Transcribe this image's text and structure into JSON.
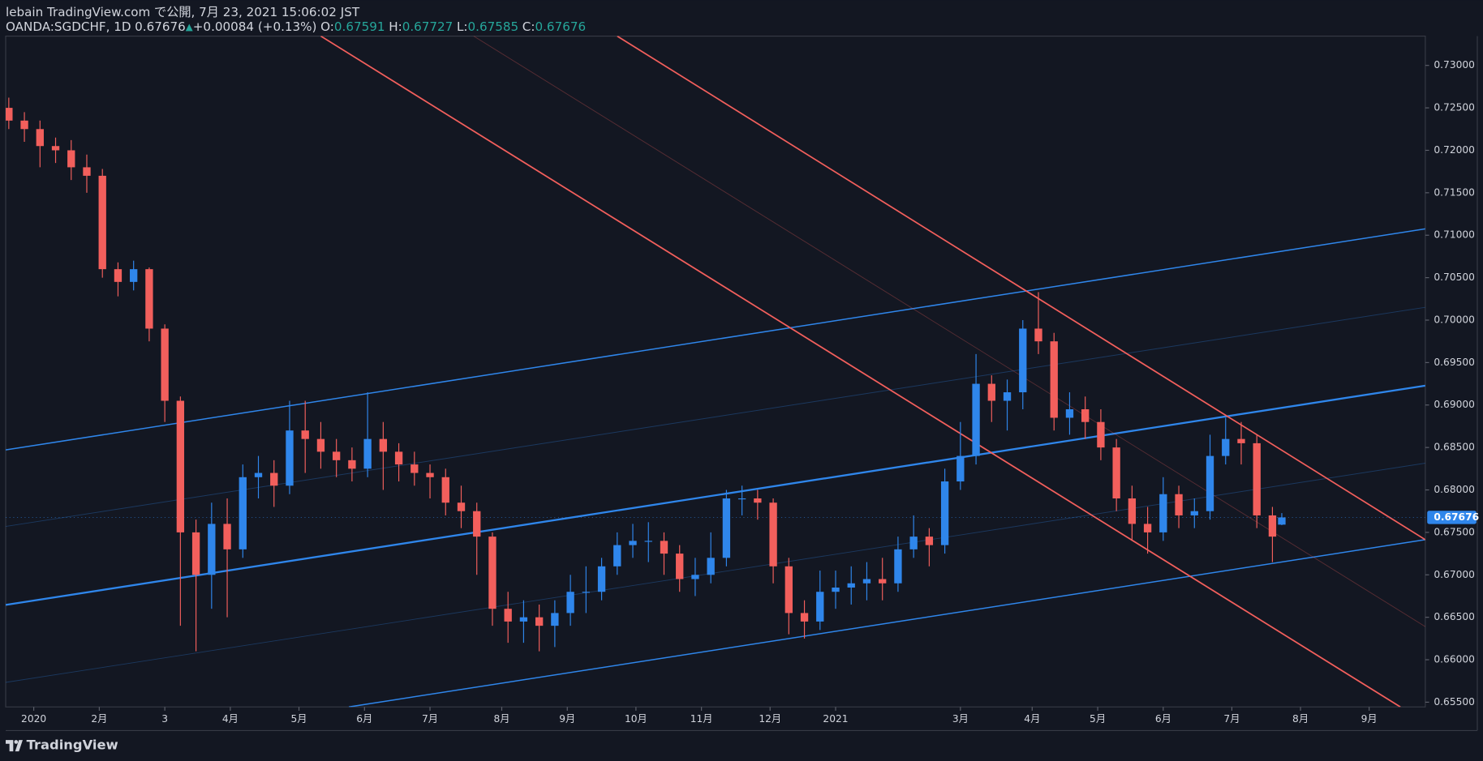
{
  "chart_data": {
    "type": "candlestick",
    "title": "lebain TradingView.com で公開, 7月 23, 2021 15:06:02 JST",
    "symbol": "OANDA:SGDCHF, 1D",
    "change": "+0.00084 (+0.13%)",
    "ohlc_labels": [
      "O:",
      "H:",
      "L:",
      "C:"
    ],
    "brand": "TradingView",
    "up_color": "#2f86eb",
    "down_color": "#f25f5c",
    "x": [
      0,
      5,
      10,
      15,
      20,
      25,
      30,
      35,
      40,
      45,
      50,
      55,
      60,
      65,
      70,
      75,
      80,
      85,
      90,
      95,
      100,
      105,
      110,
      115,
      120,
      125,
      130,
      135,
      140,
      145,
      150,
      155,
      160,
      165,
      170,
      175,
      180,
      185,
      190,
      195,
      200,
      205,
      210,
      215,
      220,
      225,
      230,
      235,
      240,
      245,
      250,
      255,
      260,
      265,
      270,
      275,
      280,
      285,
      290,
      295,
      300,
      305,
      310,
      315,
      320,
      325,
      330,
      335,
      340,
      345,
      350,
      355,
      360,
      365,
      370,
      375,
      380,
      385,
      390,
      395,
      400,
      405,
      408
    ],
    "open": [
      0.725,
      0.7235,
      0.7225,
      0.7205,
      0.72,
      0.718,
      0.717,
      0.706,
      0.7045,
      0.706,
      0.699,
      0.6905,
      0.675,
      0.67,
      0.676,
      0.673,
      0.6815,
      0.682,
      0.6805,
      0.687,
      0.686,
      0.6845,
      0.6835,
      0.6825,
      0.686,
      0.6845,
      0.683,
      0.682,
      0.6815,
      0.6785,
      0.6775,
      0.6745,
      0.666,
      0.6645,
      0.665,
      0.664,
      0.6655,
      0.668,
      0.668,
      0.671,
      0.6735,
      0.674,
      0.674,
      0.6725,
      0.6695,
      0.67,
      0.672,
      0.679,
      0.679,
      0.6785,
      0.671,
      0.6655,
      0.6645,
      0.668,
      0.6685,
      0.669,
      0.6695,
      0.669,
      0.673,
      0.6745,
      0.6735,
      0.681,
      0.684,
      0.6925,
      0.6905,
      0.6915,
      0.699,
      0.6975,
      0.6885,
      0.6895,
      0.688,
      0.685,
      0.679,
      0.676,
      0.675,
      0.6795,
      0.677,
      0.6775,
      0.684,
      0.686,
      0.6855,
      0.677,
      0.67591
    ],
    "high": [
      0.7262,
      0.7245,
      0.7235,
      0.7215,
      0.7212,
      0.7195,
      0.7178,
      0.7068,
      0.707,
      0.7062,
      0.6995,
      0.691,
      0.6765,
      0.6785,
      0.679,
      0.683,
      0.684,
      0.6835,
      0.6905,
      0.6905,
      0.688,
      0.686,
      0.685,
      0.6915,
      0.688,
      0.6855,
      0.6845,
      0.683,
      0.6825,
      0.6805,
      0.6785,
      0.675,
      0.668,
      0.667,
      0.6665,
      0.667,
      0.67,
      0.671,
      0.672,
      0.675,
      0.676,
      0.6762,
      0.675,
      0.6735,
      0.672,
      0.675,
      0.68,
      0.6805,
      0.68,
      0.679,
      0.672,
      0.667,
      0.6705,
      0.6705,
      0.671,
      0.6715,
      0.672,
      0.6745,
      0.677,
      0.6755,
      0.6825,
      0.688,
      0.696,
      0.6935,
      0.693,
      0.7,
      0.7033,
      0.6985,
      0.6915,
      0.691,
      0.6895,
      0.686,
      0.6805,
      0.678,
      0.6815,
      0.6805,
      0.679,
      0.6865,
      0.6885,
      0.688,
      0.6865,
      0.678,
      0.67727
    ],
    "low": [
      0.7225,
      0.721,
      0.718,
      0.7185,
      0.7165,
      0.715,
      0.705,
      0.7028,
      0.7035,
      0.6975,
      0.688,
      0.664,
      0.661,
      0.666,
      0.665,
      0.672,
      0.679,
      0.678,
      0.6795,
      0.682,
      0.6825,
      0.6815,
      0.681,
      0.6815,
      0.68,
      0.681,
      0.6805,
      0.679,
      0.677,
      0.6755,
      0.67,
      0.664,
      0.662,
      0.662,
      0.661,
      0.6615,
      0.664,
      0.6655,
      0.667,
      0.67,
      0.672,
      0.6715,
      0.67,
      0.668,
      0.6675,
      0.669,
      0.671,
      0.677,
      0.6765,
      0.669,
      0.663,
      0.6625,
      0.6635,
      0.666,
      0.6665,
      0.667,
      0.667,
      0.668,
      0.672,
      0.671,
      0.6725,
      0.68,
      0.683,
      0.688,
      0.687,
      0.6895,
      0.696,
      0.687,
      0.6865,
      0.686,
      0.6835,
      0.6775,
      0.674,
      0.6725,
      0.674,
      0.6755,
      0.6755,
      0.6765,
      0.683,
      0.683,
      0.6755,
      0.6715,
      0.67585
    ],
    "close": [
      0.7235,
      0.7225,
      0.7205,
      0.72,
      0.718,
      0.717,
      0.706,
      0.7045,
      0.706,
      0.699,
      0.6905,
      0.675,
      0.67,
      0.676,
      0.673,
      0.6815,
      0.682,
      0.6805,
      0.687,
      0.686,
      0.6845,
      0.6835,
      0.6825,
      0.686,
      0.6845,
      0.683,
      0.682,
      0.6815,
      0.6785,
      0.6775,
      0.6745,
      0.666,
      0.6645,
      0.665,
      0.664,
      0.6655,
      0.668,
      0.668,
      0.671,
      0.6735,
      0.674,
      0.674,
      0.6725,
      0.6695,
      0.67,
      0.672,
      0.679,
      0.679,
      0.6785,
      0.671,
      0.6655,
      0.6645,
      0.668,
      0.6685,
      0.669,
      0.6695,
      0.669,
      0.673,
      0.6745,
      0.6735,
      0.681,
      0.684,
      0.6925,
      0.6905,
      0.6915,
      0.699,
      0.6975,
      0.6885,
      0.6895,
      0.688,
      0.685,
      0.679,
      0.676,
      0.675,
      0.6795,
      0.677,
      0.6775,
      0.684,
      0.686,
      0.6855,
      0.677,
      0.6745,
      0.67676
    ],
    "xlim": [
      -1,
      454
    ],
    "xticks": [
      {
        "value": 8,
        "label": "2020"
      },
      {
        "value": 29,
        "label": "2月"
      },
      {
        "value": 50,
        "label": "3"
      },
      {
        "value": 71,
        "label": "4月"
      },
      {
        "value": 93,
        "label": "5月"
      },
      {
        "value": 114,
        "label": "6月"
      },
      {
        "value": 135,
        "label": "7月"
      },
      {
        "value": 158,
        "label": "8月"
      },
      {
        "value": 179,
        "label": "9月"
      },
      {
        "value": 201,
        "label": "10月"
      },
      {
        "value": 222,
        "label": "11月"
      },
      {
        "value": 244,
        "label": "12月"
      },
      {
        "value": 265,
        "label": "2021"
      },
      {
        "value": 305,
        "label": "3月"
      },
      {
        "value": 328,
        "label": "4月"
      },
      {
        "value": 349,
        "label": "5月"
      },
      {
        "value": 370,
        "label": "6月"
      },
      {
        "value": 392,
        "label": "7月"
      },
      {
        "value": 414,
        "label": "8月"
      },
      {
        "value": 436,
        "label": "9月"
      }
    ],
    "ylim": [
      0.65444,
      0.73345
    ],
    "yticks": [
      {
        "value": 0.655,
        "label": "0.65500"
      },
      {
        "value": 0.66,
        "label": "0.66000"
      },
      {
        "value": 0.665,
        "label": "0.66500"
      },
      {
        "value": 0.67,
        "label": "0.67000"
      },
      {
        "value": 0.675,
        "label": "0.67500"
      },
      {
        "value": 0.68,
        "label": "0.68000"
      },
      {
        "value": 0.685,
        "label": "0.68500"
      },
      {
        "value": 0.69,
        "label": "0.69000"
      },
      {
        "value": 0.695,
        "label": "0.69500"
      },
      {
        "value": 0.7,
        "label": "0.70000"
      },
      {
        "value": 0.705,
        "label": "0.70500"
      },
      {
        "value": 0.71,
        "label": "0.71000"
      },
      {
        "value": 0.715,
        "label": "0.71500"
      },
      {
        "value": 0.72,
        "label": "0.72000"
      },
      {
        "value": 0.725,
        "label": "0.72500"
      },
      {
        "value": 0.73,
        "label": "0.73000"
      }
    ],
    "drawings": [
      {
        "color": "#2f86eb",
        "width": 1.3,
        "opacity": 1,
        "x": [
          -1,
          454
        ],
        "y": [
          0.68471,
          0.71075
        ]
      },
      {
        "color": "#2f86eb",
        "width": 2,
        "opacity": 1,
        "x": [
          -1,
          454
        ],
        "y": [
          0.66646,
          0.69228
        ]
      },
      {
        "color": "#2f86eb",
        "width": 1.3,
        "opacity": 1,
        "x": [
          109,
          454
        ],
        "y": [
          0.65444,
          0.67414
        ]
      },
      {
        "color": "#2f86eb",
        "width": 0.8,
        "opacity": 0.3,
        "x": [
          -1,
          454
        ],
        "y": [
          0.6757,
          0.70151
        ]
      },
      {
        "color": "#2f86eb",
        "width": 0.8,
        "opacity": 0.3,
        "x": [
          -1,
          454
        ],
        "y": [
          0.65733,
          0.68315
        ]
      },
      {
        "color": "#f25f5c",
        "width": 1.5,
        "opacity": 1,
        "x": [
          195,
          454
        ],
        "y": [
          0.73345,
          0.67414
        ]
      },
      {
        "color": "#f25f5c",
        "width": 1.5,
        "opacity": 1,
        "x": [
          100,
          446
        ],
        "y": [
          0.73345,
          0.65444
        ]
      },
      {
        "color": "#f25f5c",
        "width": 0.8,
        "opacity": 0.3,
        "x": [
          149,
          454
        ],
        "y": [
          0.73345,
          0.6639
        ]
      }
    ]
  }
}
